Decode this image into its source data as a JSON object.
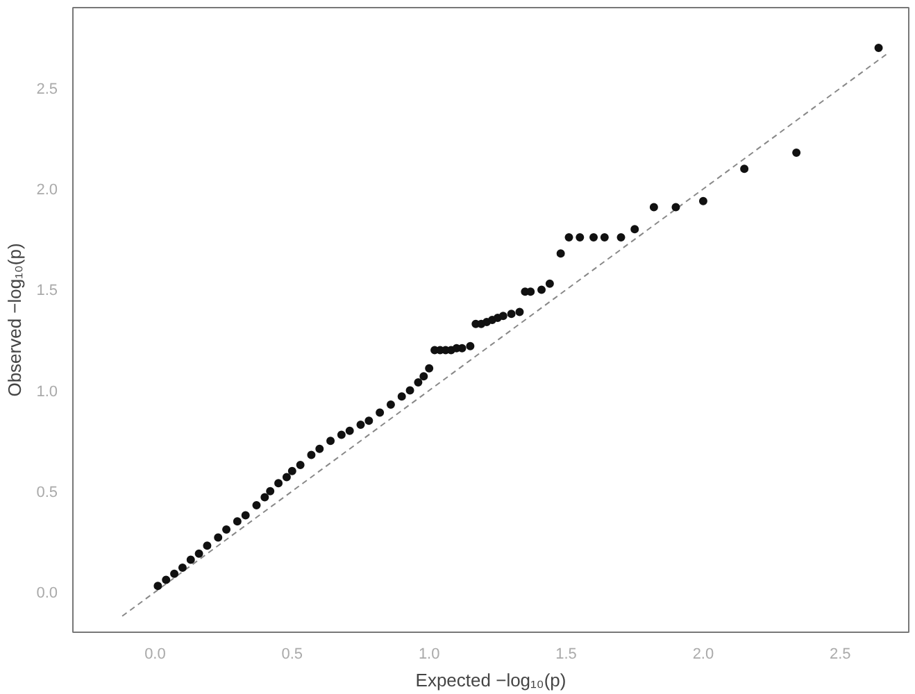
{
  "chart_data": {
    "type": "scatter",
    "xlabel": "Expected −log₁₀(p)",
    "ylabel": "Observed −log₁₀(p)",
    "xlim": [
      -0.3,
      2.75
    ],
    "ylim": [
      -0.2,
      2.9
    ],
    "xticks": [
      {
        "value": 0,
        "label": "0.0"
      },
      {
        "value": 0.5,
        "label": "0.5"
      },
      {
        "value": 1,
        "label": "1.0"
      },
      {
        "value": 1.5,
        "label": "1.5"
      },
      {
        "value": 2,
        "label": "2.0"
      },
      {
        "value": 2.5,
        "label": "2.5"
      }
    ],
    "yticks": [
      {
        "value": 0,
        "label": "0.0"
      },
      {
        "value": 0.5,
        "label": "0.5"
      },
      {
        "value": 1,
        "label": "1.0"
      },
      {
        "value": 1.5,
        "label": "1.5"
      },
      {
        "value": 2,
        "label": "2.0"
      },
      {
        "value": 2.5,
        "label": "2.5"
      }
    ],
    "grid": false,
    "marker": "circle",
    "series": [
      {
        "color": "#111111",
        "x": [
          0.01,
          0.04,
          0.07,
          0.1,
          0.13,
          0.16,
          0.19,
          0.23,
          0.26,
          0.3,
          0.33,
          0.37,
          0.4,
          0.42,
          0.45,
          0.48,
          0.5,
          0.53,
          0.57,
          0.6,
          0.64,
          0.68,
          0.71,
          0.75,
          0.78,
          0.82,
          0.86,
          0.9,
          0.93,
          0.96,
          0.98,
          1.0,
          1.02,
          1.04,
          1.06,
          1.08,
          1.1,
          1.12,
          1.15,
          1.17,
          1.19,
          1.21,
          1.23,
          1.25,
          1.27,
          1.3,
          1.33,
          1.35,
          1.37,
          1.41,
          1.44,
          1.48,
          1.51,
          1.55,
          1.6,
          1.64,
          1.7,
          1.75,
          1.82,
          1.9,
          2.0,
          2.15,
          2.34,
          2.64
        ],
        "values": [
          0.03,
          0.06,
          0.09,
          0.12,
          0.16,
          0.19,
          0.23,
          0.27,
          0.31,
          0.35,
          0.38,
          0.43,
          0.47,
          0.5,
          0.54,
          0.57,
          0.6,
          0.63,
          0.68,
          0.71,
          0.75,
          0.78,
          0.8,
          0.83,
          0.85,
          0.89,
          0.93,
          0.97,
          1.0,
          1.04,
          1.07,
          1.11,
          1.2,
          1.2,
          1.2,
          1.2,
          1.21,
          1.21,
          1.22,
          1.33,
          1.33,
          1.34,
          1.35,
          1.36,
          1.37,
          1.38,
          1.39,
          1.49,
          1.49,
          1.5,
          1.53,
          1.68,
          1.76,
          1.76,
          1.76,
          1.76,
          1.76,
          1.8,
          1.91,
          1.91,
          1.94,
          2.1,
          2.18,
          2.7
        ]
      },
      {
        "type": "line",
        "color": "#888888",
        "line_style": "dashed",
        "marker": "none",
        "x": [
          -0.12,
          2.68
        ],
        "values": [
          -0.12,
          2.68
        ]
      }
    ]
  }
}
